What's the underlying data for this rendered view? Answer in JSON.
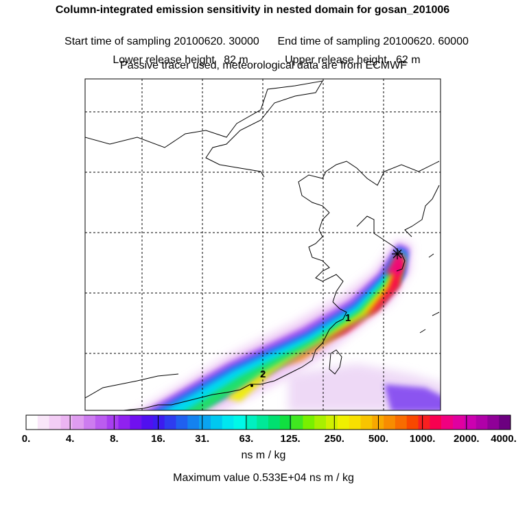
{
  "title": "Column-integrated emission sensitivity in nested domain for gosan_201006",
  "sampling": {
    "start": "Start time of sampling 20100620. 30000",
    "end": "End time of sampling 20100620. 60000"
  },
  "release": {
    "lower": "Lower release height   82 m",
    "upper": "Upper release height   62 m"
  },
  "note": "Passive tracer used, meteorological data are from ECMWF",
  "map_labels": {
    "point1": "1",
    "point2": "2"
  },
  "colorbar": {
    "ticks": [
      "0.",
      "4.",
      "8.",
      "16.",
      "31.",
      "63.",
      "125.",
      "250.",
      "500.",
      "1000.",
      "2000.",
      "4000."
    ],
    "colors": [
      "#ffffff",
      "#f9e6f9",
      "#f3cdf5",
      "#ebb4f2",
      "#df9cf0",
      "#cd7cf0",
      "#bb5cf0",
      "#a83ef0",
      "#9022f0",
      "#7010f0",
      "#5010f0",
      "#3c1cf0",
      "#2e3cf0",
      "#2060f0",
      "#1482f0",
      "#0aa4f0",
      "#00c8f0",
      "#00e6f0",
      "#00f8e8",
      "#00f0c0",
      "#00e898",
      "#00e070",
      "#10e040",
      "#40e820",
      "#78f000",
      "#a8f000",
      "#d0f000",
      "#f0f000",
      "#f8e000",
      "#f8c400",
      "#f8a800",
      "#f88c00",
      "#f86c00",
      "#f84800",
      "#f82020",
      "#f80050",
      "#f00080",
      "#e000a0",
      "#cc00b0",
      "#b000a8",
      "#900098",
      "#6c0080"
    ],
    "unit": "ns m / kg"
  },
  "max_value": "Maximum value  0.533E+04 ns m / kg"
}
